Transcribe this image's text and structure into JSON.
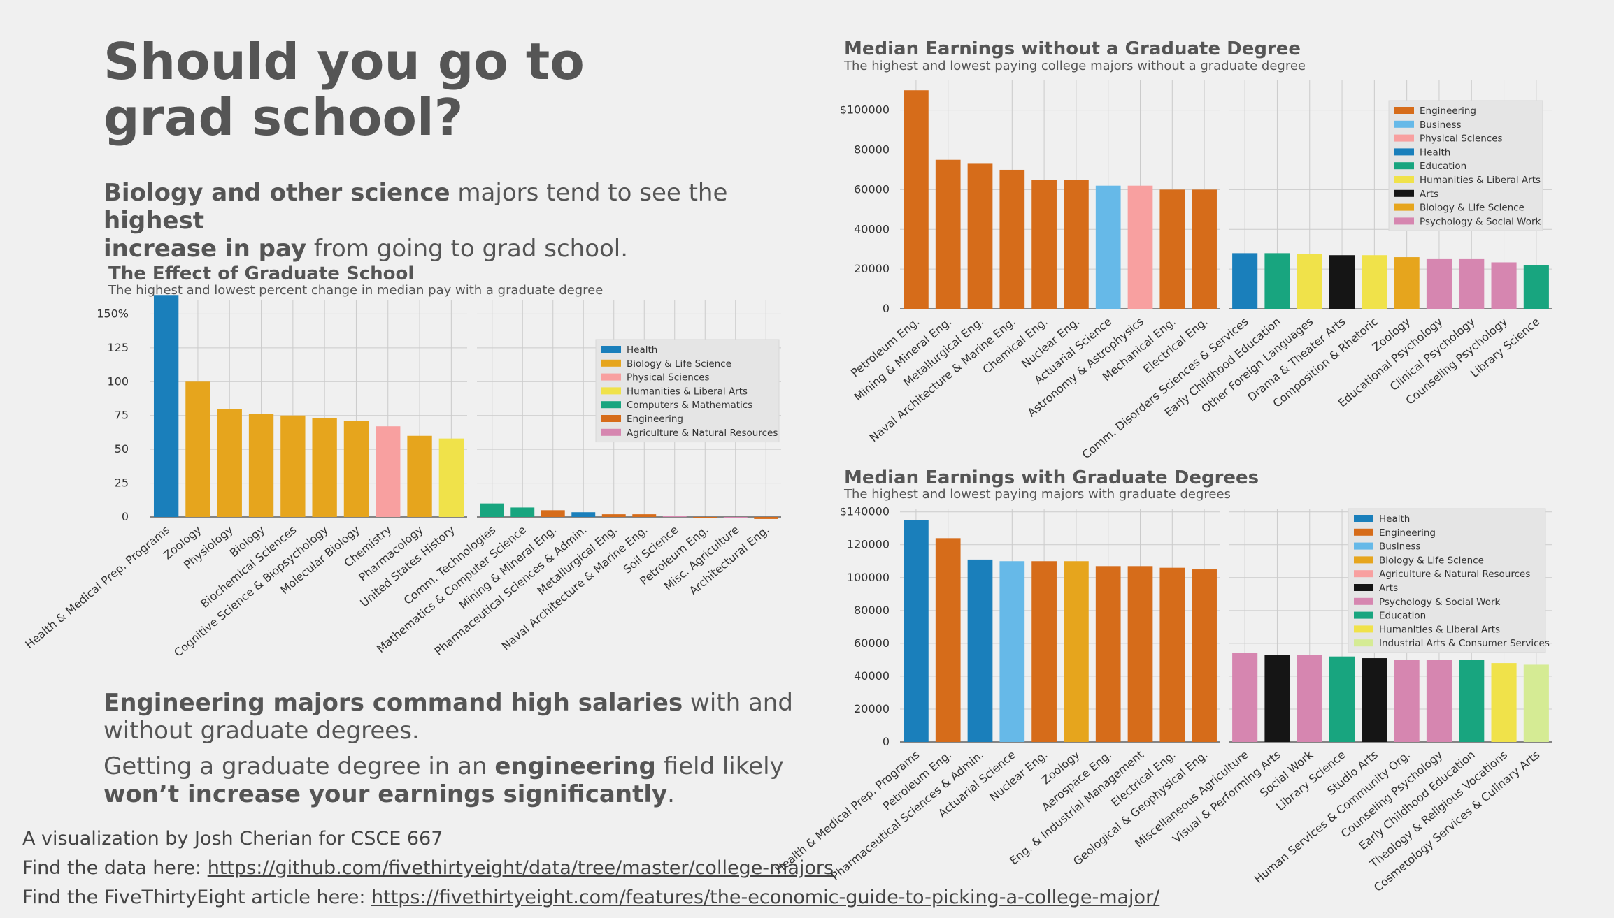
{
  "intro": {
    "headline_line1": "Should you go to",
    "headline_line2": "grad school?",
    "p1": {
      "s1": "Biology and other science",
      "s2": " majors tend to see the ",
      "s3": "highest",
      "s4": "increase in pay",
      "s5": " from going to grad school."
    },
    "p2": {
      "s1": "Engineering majors command high salaries",
      "s2": " with and",
      "s3": "without graduate degrees."
    },
    "p3": {
      "s1": "Getting a graduate degree in an ",
      "s2": "engineering",
      "s3": " field likely",
      "s4": "won’t increase your earnings significantly",
      "s5": "."
    }
  },
  "footer": {
    "credit": "A visualization by Josh Cherian for CSCE 667",
    "data_prefix": "Find the data here: ",
    "data_link": "https://github.com/fivethirtyeight/data/tree/master/college-majors",
    "article_prefix": "Find the FiveThirtyEight article here: ",
    "article_link": "https://fivethirtyeight.com/features/the-economic-guide-to-picking-a-college-major/"
  },
  "colors": {
    "Health": "#1a7fbb",
    "Biology & Life Science": "#e6a51d",
    "Physical Sciences": "#f8a0a0",
    "Humanities & Liberal Arts": "#f0e24a",
    "Computers & Mathematics": "#18a57f",
    "Engineering": "#d66c1a",
    "Agriculture & Natural Resources": "#d686b0",
    "Agriculture & Natural Resources (pink)": "#f8a0a0",
    "Business": "#66b9e8",
    "Education": "#18a57f",
    "Arts": "#151515",
    "Psychology & Social Work": "#d686b0",
    "Industrial Arts & Consumer Services": "#d5eb94"
  },
  "chart_data": [
    {
      "id": "effect",
      "type": "bar",
      "title": "The Effect of Graduate School",
      "subtitle": "The highest and lowest percent change in median pay with a graduate degree",
      "ylim": [
        0,
        160
      ],
      "yticks": [
        0,
        25,
        50,
        75,
        100,
        125,
        150
      ],
      "ytick_labels": [
        "0",
        "25",
        "50",
        "75",
        "100",
        "125",
        "150%"
      ],
      "grid": true,
      "legend_position": "top-right",
      "legend": [
        "Health",
        "Biology & Life Science",
        "Physical Sciences",
        "Humanities & Liberal Arts",
        "Computers & Mathematics",
        "Engineering",
        "Agriculture & Natural Resources"
      ],
      "legend_colors": [
        "#1a7fbb",
        "#e6a51d",
        "#f8a0a0",
        "#f0e24a",
        "#18a57f",
        "#d66c1a",
        "#d686b0"
      ],
      "panels": [
        {
          "categories": [
            "Health & Medical Prep. Programs",
            "Zoology",
            "Physiology",
            "Biology",
            "Biochemical Sciences",
            "Cognitive Science & Biopsychology",
            "Molecular Biology",
            "Chemistry",
            "Pharmacology",
            "United States History"
          ],
          "values": [
            164,
            100,
            80,
            76,
            75,
            73,
            71,
            67,
            60,
            58
          ],
          "groups": [
            "Health",
            "Biology & Life Science",
            "Biology & Life Science",
            "Biology & Life Science",
            "Biology & Life Science",
            "Biology & Life Science",
            "Biology & Life Science",
            "Physical Sciences",
            "Biology & Life Science",
            "Humanities & Liberal Arts"
          ]
        },
        {
          "categories": [
            "Comm. Technologies",
            "Mathematics & Computer Science",
            "Mining & Mineral Eng.",
            "Pharmaceutical Sciences & Admin.",
            "Metallurgical Eng.",
            "Naval Architecture & Marine Eng.",
            "Soil Science",
            "Petroleum Eng.",
            "Misc. Agriculture",
            "Architectural Eng."
          ],
          "values": [
            10,
            7,
            5,
            3.5,
            2,
            2,
            0.5,
            -1,
            -1,
            -1.5
          ],
          "groups": [
            "Computers & Mathematics",
            "Computers & Mathematics",
            "Engineering",
            "Health",
            "Engineering",
            "Engineering",
            "Agriculture & Natural Resources",
            "Engineering",
            "Agriculture & Natural Resources",
            "Engineering"
          ]
        }
      ]
    },
    {
      "id": "nograd",
      "type": "bar",
      "title": "Median Earnings without a Graduate Degree",
      "subtitle": "The highest and lowest paying college majors without a graduate degree",
      "ylim": [
        0,
        115000
      ],
      "yticks": [
        0,
        20000,
        40000,
        60000,
        80000,
        100000
      ],
      "ytick_labels": [
        "0",
        "20000",
        "40000",
        "60000",
        "80000",
        "$100000"
      ],
      "grid": true,
      "legend_position": "top-right",
      "legend": [
        "Engineering",
        "Business",
        "Physical Sciences",
        "Health",
        "Education",
        "Humanities & Liberal Arts",
        "Arts",
        "Biology & Life Science",
        "Psychology & Social Work"
      ],
      "legend_colors": [
        "#d66c1a",
        "#66b9e8",
        "#f8a0a0",
        "#1a7fbb",
        "#18a57f",
        "#f0e24a",
        "#151515",
        "#e6a51d",
        "#d686b0"
      ],
      "panels": [
        {
          "categories": [
            "Petroleum Eng.",
            "Mining & Mineral Eng.",
            "Metallurgical Eng.",
            "Naval Architecture & Marine Eng.",
            "Chemical Eng.",
            "Nuclear Eng.",
            "Actuarial Science",
            "Astronomy & Astrophysics",
            "Mechanical Eng.",
            "Electrical Eng."
          ],
          "values": [
            110000,
            75000,
            73000,
            70000,
            65000,
            65000,
            62000,
            62000,
            60000,
            60000
          ],
          "groups": [
            "Engineering",
            "Engineering",
            "Engineering",
            "Engineering",
            "Engineering",
            "Engineering",
            "Business",
            "Physical Sciences",
            "Engineering",
            "Engineering"
          ]
        },
        {
          "categories": [
            "Comm. Disorders Sciences & Services",
            "Early Childhood Education",
            "Other Foreign Languages",
            "Drama & Theater Arts",
            "Composition & Rhetoric",
            "Zoology",
            "Educational Psychology",
            "Clinical Psychology",
            "Counseling Psychology",
            "Library Science"
          ],
          "values": [
            28000,
            28000,
            27500,
            27000,
            27000,
            26000,
            25000,
            25000,
            23400,
            22000
          ],
          "groups": [
            "Health",
            "Education",
            "Humanities & Liberal Arts",
            "Arts",
            "Humanities & Liberal Arts",
            "Biology & Life Science",
            "Psychology & Social Work",
            "Psychology & Social Work",
            "Psychology & Social Work",
            "Education"
          ]
        }
      ]
    },
    {
      "id": "grad",
      "type": "bar",
      "title": "Median Earnings with Graduate Degrees",
      "subtitle": "The highest and lowest paying majors with graduate degrees",
      "ylim": [
        0,
        142000
      ],
      "yticks": [
        0,
        20000,
        40000,
        60000,
        80000,
        100000,
        120000,
        140000
      ],
      "ytick_labels": [
        "0",
        "20000",
        "40000",
        "60000",
        "80000",
        "100000",
        "120000",
        "$140000"
      ],
      "grid": true,
      "legend_position": "top-right",
      "legend": [
        "Health",
        "Engineering",
        "Business",
        "Biology & Life Science",
        "Agriculture & Natural Resources",
        "Arts",
        "Psychology & Social Work",
        "Education",
        "Humanities & Liberal Arts",
        "Industrial Arts & Consumer Services"
      ],
      "legend_colors": [
        "#1a7fbb",
        "#d66c1a",
        "#66b9e8",
        "#e6a51d",
        "#f8a0a0",
        "#151515",
        "#d686b0",
        "#18a57f",
        "#f0e24a",
        "#d5eb94"
      ],
      "panels": [
        {
          "categories": [
            "Health & Medical Prep. Programs",
            "Petroleum Eng.",
            "Pharmaceutical Sciences & Admin.",
            "Actuarial Science",
            "Nuclear Eng.",
            "Zoology",
            "Aerospace Eng.",
            "Eng. & Industrial Management",
            "Electrical Eng.",
            "Geological & Geophysical Eng."
          ],
          "values": [
            135000,
            124000,
            111000,
            110000,
            110000,
            110000,
            107000,
            107000,
            106000,
            105000
          ],
          "groups": [
            "Health",
            "Engineering",
            "Health",
            "Business",
            "Engineering",
            "Biology & Life Science",
            "Engineering",
            "Engineering",
            "Engineering",
            "Engineering"
          ]
        },
        {
          "categories": [
            "Miscellaneous Agriculture",
            "Visual & Performing Arts",
            "Social Work",
            "Library Science",
            "Studio Arts",
            "Human Services & Community Org.",
            "Counseling Psychology",
            "Early Childhood Education",
            "Theology & Religious Vocations",
            "Cosmetology Services & Culinary Arts"
          ],
          "values": [
            54000,
            53000,
            53000,
            52000,
            51000,
            50000,
            50000,
            50000,
            48000,
            47000
          ],
          "groups": [
            "Agriculture & Natural Resources",
            "Arts",
            "Psychology & Social Work",
            "Education",
            "Arts",
            "Psychology & Social Work",
            "Psychology & Social Work",
            "Education",
            "Humanities & Liberal Arts",
            "Industrial Arts & Consumer Services"
          ]
        }
      ]
    }
  ]
}
